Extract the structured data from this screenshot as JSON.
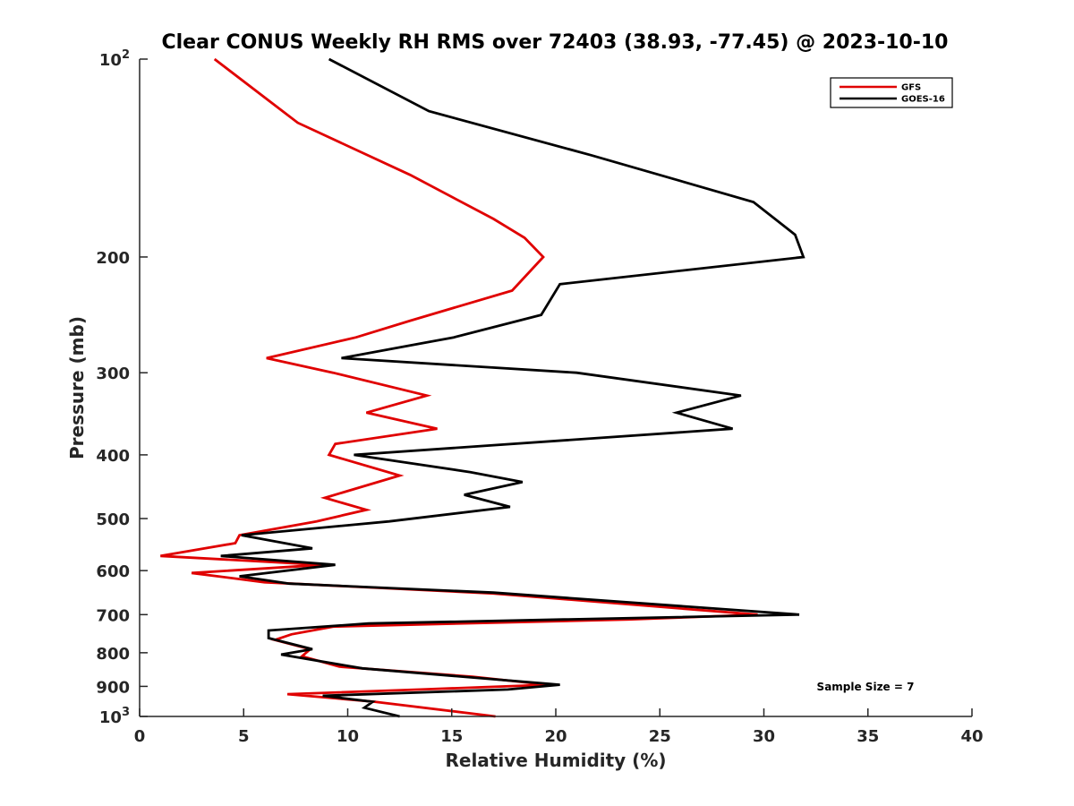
{
  "chart_data": {
    "type": "line",
    "title": "Clear CONUS Weekly RH RMS over 72403 (38.93, -77.45) @ 2023-10-10",
    "xlabel": "Relative Humidity (%)",
    "ylabel": "Pressure (mb)",
    "xlim": [
      0,
      40
    ],
    "ylim": [
      100,
      1000
    ],
    "yscale": "log",
    "y_reversed": true,
    "grid": false,
    "legend_position": "top-right",
    "x_ticks": [
      0,
      5,
      10,
      15,
      20,
      25,
      30,
      35,
      40
    ],
    "x_tick_labels": [
      "0",
      "5",
      "10",
      "15",
      "20",
      "25",
      "30",
      "35",
      "40"
    ],
    "y_ticks": [
      100,
      200,
      300,
      400,
      500,
      600,
      700,
      800,
      900,
      1000
    ],
    "y_tick_labels": [
      {
        "base": "10",
        "exp": "2"
      },
      {
        "base": "200",
        "exp": ""
      },
      {
        "base": "300",
        "exp": ""
      },
      {
        "base": "400",
        "exp": ""
      },
      {
        "base": "500",
        "exp": ""
      },
      {
        "base": "600",
        "exp": ""
      },
      {
        "base": "700",
        "exp": ""
      },
      {
        "base": "800",
        "exp": ""
      },
      {
        "base": "900",
        "exp": ""
      },
      {
        "base": "10",
        "exp": "3"
      }
    ],
    "annotation": "Sample Size = 7",
    "series": [
      {
        "name": "GFS",
        "color": "#e00000",
        "points": [
          {
            "x": 3.6,
            "p": 100
          },
          {
            "x": 7.6,
            "p": 125
          },
          {
            "x": 13.0,
            "p": 150
          },
          {
            "x": 17.0,
            "p": 175
          },
          {
            "x": 18.5,
            "p": 187
          },
          {
            "x": 19.4,
            "p": 200
          },
          {
            "x": 17.9,
            "p": 225
          },
          {
            "x": 13.0,
            "p": 250
          },
          {
            "x": 10.4,
            "p": 265
          },
          {
            "x": 6.1,
            "p": 285
          },
          {
            "x": 9.3,
            "p": 300
          },
          {
            "x": 13.8,
            "p": 325
          },
          {
            "x": 10.9,
            "p": 345
          },
          {
            "x": 14.3,
            "p": 365
          },
          {
            "x": 9.4,
            "p": 385
          },
          {
            "x": 9.1,
            "p": 400
          },
          {
            "x": 12.5,
            "p": 430
          },
          {
            "x": 8.9,
            "p": 465
          },
          {
            "x": 10.9,
            "p": 485
          },
          {
            "x": 8.5,
            "p": 505
          },
          {
            "x": 4.8,
            "p": 530
          },
          {
            "x": 4.6,
            "p": 545
          },
          {
            "x": 1.0,
            "p": 570
          },
          {
            "x": 8.8,
            "p": 588
          },
          {
            "x": 2.5,
            "p": 605
          },
          {
            "x": 6.0,
            "p": 625
          },
          {
            "x": 17.0,
            "p": 650
          },
          {
            "x": 29.7,
            "p": 700
          },
          {
            "x": 23.5,
            "p": 712
          },
          {
            "x": 9.3,
            "p": 730
          },
          {
            "x": 7.3,
            "p": 750
          },
          {
            "x": 6.5,
            "p": 765
          },
          {
            "x": 8.2,
            "p": 790
          },
          {
            "x": 7.8,
            "p": 810
          },
          {
            "x": 9.6,
            "p": 840
          },
          {
            "x": 16.0,
            "p": 870
          },
          {
            "x": 19.6,
            "p": 895
          },
          {
            "x": 13.5,
            "p": 910
          },
          {
            "x": 7.1,
            "p": 925
          },
          {
            "x": 11.3,
            "p": 950
          },
          {
            "x": 17.1,
            "p": 1000
          }
        ]
      },
      {
        "name": "GOES-16",
        "color": "#000000",
        "points": [
          {
            "x": 9.1,
            "p": 100
          },
          {
            "x": 13.9,
            "p": 120
          },
          {
            "x": 21.7,
            "p": 140
          },
          {
            "x": 29.5,
            "p": 165
          },
          {
            "x": 31.5,
            "p": 185
          },
          {
            "x": 31.9,
            "p": 200
          },
          {
            "x": 20.2,
            "p": 220
          },
          {
            "x": 19.3,
            "p": 245
          },
          {
            "x": 15.1,
            "p": 265
          },
          {
            "x": 9.7,
            "p": 285
          },
          {
            "x": 21.0,
            "p": 300
          },
          {
            "x": 28.9,
            "p": 325
          },
          {
            "x": 25.8,
            "p": 345
          },
          {
            "x": 28.5,
            "p": 365
          },
          {
            "x": 10.3,
            "p": 400
          },
          {
            "x": 15.9,
            "p": 425
          },
          {
            "x": 18.4,
            "p": 440
          },
          {
            "x": 15.6,
            "p": 460
          },
          {
            "x": 17.8,
            "p": 480
          },
          {
            "x": 12.0,
            "p": 505
          },
          {
            "x": 4.9,
            "p": 530
          },
          {
            "x": 8.3,
            "p": 555
          },
          {
            "x": 3.9,
            "p": 570
          },
          {
            "x": 9.4,
            "p": 588
          },
          {
            "x": 4.8,
            "p": 612
          },
          {
            "x": 7.2,
            "p": 628
          },
          {
            "x": 17.0,
            "p": 648
          },
          {
            "x": 31.7,
            "p": 700
          },
          {
            "x": 11.0,
            "p": 722
          },
          {
            "x": 6.2,
            "p": 740
          },
          {
            "x": 6.2,
            "p": 760
          },
          {
            "x": 8.3,
            "p": 790
          },
          {
            "x": 6.8,
            "p": 805
          },
          {
            "x": 10.7,
            "p": 845
          },
          {
            "x": 20.2,
            "p": 895
          },
          {
            "x": 17.7,
            "p": 910
          },
          {
            "x": 8.8,
            "p": 930
          },
          {
            "x": 11.2,
            "p": 950
          },
          {
            "x": 10.8,
            "p": 970
          },
          {
            "x": 12.5,
            "p": 1000
          }
        ]
      }
    ]
  }
}
